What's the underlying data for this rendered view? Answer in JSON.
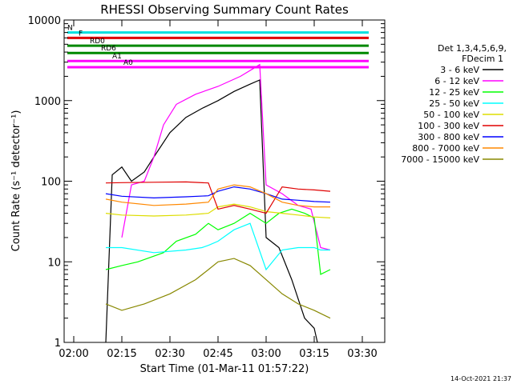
{
  "chart_data": {
    "type": "line",
    "title": "RHESSI Observing Summary Count Rates",
    "xlabel": "Start Time (01-Mar-11 01:57:22)",
    "ylabel": "Count Rate (s⁻¹ detector⁻¹)",
    "y_scale": "log",
    "ylim": [
      1,
      10000
    ],
    "x_range_minutes": [
      "01:57",
      "03:37"
    ],
    "x_ticks": [
      "02:00",
      "02:15",
      "02:30",
      "02:45",
      "03:00",
      "03:15",
      "03:30"
    ],
    "y_ticks": [
      "1",
      "10",
      "100",
      "1000",
      "10000"
    ],
    "legend_header": [
      "Det 1,3,4,5,6,9,",
      "FDecim 1"
    ],
    "legend_position": "right",
    "grid": false,
    "series": [
      {
        "name": "3 - 6 keV",
        "color": "#000000",
        "points": [
          [
            "02:10",
            0
          ],
          [
            "02:12",
            120
          ],
          [
            "02:15",
            150
          ],
          [
            "02:18",
            100
          ],
          [
            "02:22",
            130
          ],
          [
            "02:25",
            200
          ],
          [
            "02:30",
            400
          ],
          [
            "02:35",
            620
          ],
          [
            "02:40",
            800
          ],
          [
            "02:45",
            1000
          ],
          [
            "02:50",
            1300
          ],
          [
            "02:55",
            1600
          ],
          [
            "02:58",
            1800
          ],
          [
            "03:00",
            20
          ],
          [
            "03:04",
            15
          ],
          [
            "03:08",
            6
          ],
          [
            "03:12",
            2
          ],
          [
            "03:15",
            1.5
          ],
          [
            "03:16",
            0
          ]
        ]
      },
      {
        "name": "6 - 12 keV",
        "color": "#ff00ff",
        "points": [
          [
            "02:15",
            20
          ],
          [
            "02:18",
            90
          ],
          [
            "02:22",
            100
          ],
          [
            "02:25",
            200
          ],
          [
            "02:28",
            500
          ],
          [
            "02:32",
            900
          ],
          [
            "02:38",
            1200
          ],
          [
            "02:45",
            1500
          ],
          [
            "02:52",
            2000
          ],
          [
            "02:56",
            2500
          ],
          [
            "02:58",
            2800
          ],
          [
            "03:00",
            90
          ],
          [
            "03:05",
            70
          ],
          [
            "03:10",
            50
          ],
          [
            "03:14",
            45
          ],
          [
            "03:17",
            15
          ],
          [
            "03:20",
            14
          ]
        ]
      },
      {
        "name": "12 - 25 keV",
        "color": "#00ff00",
        "points": [
          [
            "02:10",
            8
          ],
          [
            "02:15",
            9
          ],
          [
            "02:20",
            10
          ],
          [
            "02:28",
            13
          ],
          [
            "02:32",
            18
          ],
          [
            "02:38",
            22
          ],
          [
            "02:42",
            30
          ],
          [
            "02:45",
            25
          ],
          [
            "02:50",
            30
          ],
          [
            "02:55",
            40
          ],
          [
            "03:00",
            30
          ],
          [
            "03:04",
            40
          ],
          [
            "03:08",
            45
          ],
          [
            "03:12",
            40
          ],
          [
            "03:15",
            35
          ],
          [
            "03:17",
            7
          ],
          [
            "03:20",
            8
          ]
        ]
      },
      {
        "name": "25 - 50 keV",
        "color": "#00ffff",
        "points": [
          [
            "02:10",
            15
          ],
          [
            "02:15",
            15
          ],
          [
            "02:25",
            13
          ],
          [
            "02:35",
            14
          ],
          [
            "02:40",
            15
          ],
          [
            "02:42",
            16
          ],
          [
            "02:45",
            18
          ],
          [
            "02:50",
            25
          ],
          [
            "02:55",
            30
          ],
          [
            "03:00",
            8
          ],
          [
            "03:05",
            14
          ],
          [
            "03:10",
            15
          ],
          [
            "03:15",
            15
          ],
          [
            "03:17",
            14
          ],
          [
            "03:20",
            14
          ]
        ]
      },
      {
        "name": "50 - 100 keV",
        "color": "#dddd00",
        "points": [
          [
            "02:10",
            40
          ],
          [
            "02:15",
            38
          ],
          [
            "02:25",
            37
          ],
          [
            "02:35",
            38
          ],
          [
            "02:42",
            40
          ],
          [
            "02:45",
            48
          ],
          [
            "02:50",
            52
          ],
          [
            "02:55",
            48
          ],
          [
            "03:00",
            42
          ],
          [
            "03:05",
            40
          ],
          [
            "03:10",
            38
          ],
          [
            "03:15",
            36
          ],
          [
            "03:20",
            35
          ]
        ]
      },
      {
        "name": "100 - 300 keV",
        "color": "#e00000",
        "points": [
          [
            "02:10",
            95
          ],
          [
            "02:15",
            96
          ],
          [
            "02:25",
            97
          ],
          [
            "02:35",
            98
          ],
          [
            "02:42",
            95
          ],
          [
            "02:45",
            45
          ],
          [
            "02:50",
            50
          ],
          [
            "02:55",
            45
          ],
          [
            "03:00",
            40
          ],
          [
            "03:05",
            85
          ],
          [
            "03:10",
            80
          ],
          [
            "03:15",
            78
          ],
          [
            "03:20",
            75
          ]
        ]
      },
      {
        "name": "300 - 800 keV",
        "color": "#0000ff",
        "points": [
          [
            "02:10",
            70
          ],
          [
            "02:15",
            65
          ],
          [
            "02:25",
            62
          ],
          [
            "02:35",
            64
          ],
          [
            "02:42",
            66
          ],
          [
            "02:45",
            75
          ],
          [
            "02:50",
            85
          ],
          [
            "02:55",
            80
          ],
          [
            "03:00",
            70
          ],
          [
            "03:05",
            60
          ],
          [
            "03:10",
            58
          ],
          [
            "03:15",
            56
          ],
          [
            "03:20",
            55
          ]
        ]
      },
      {
        "name": "800 - 7000 keV",
        "color": "#ff8800",
        "points": [
          [
            "02:10",
            60
          ],
          [
            "02:15",
            55
          ],
          [
            "02:25",
            50
          ],
          [
            "02:35",
            52
          ],
          [
            "02:42",
            55
          ],
          [
            "02:45",
            80
          ],
          [
            "02:50",
            90
          ],
          [
            "02:55",
            85
          ],
          [
            "03:00",
            70
          ],
          [
            "03:05",
            55
          ],
          [
            "03:10",
            50
          ],
          [
            "03:15",
            48
          ],
          [
            "03:20",
            48
          ]
        ]
      },
      {
        "name": "7000 - 15000 keV",
        "color": "#888800",
        "points": [
          [
            "02:10",
            3
          ],
          [
            "02:15",
            2.5
          ],
          [
            "02:22",
            3
          ],
          [
            "02:30",
            4
          ],
          [
            "02:38",
            6
          ],
          [
            "02:42",
            8
          ],
          [
            "02:45",
            10
          ],
          [
            "02:50",
            11
          ],
          [
            "02:55",
            9
          ],
          [
            "03:00",
            6
          ],
          [
            "03:05",
            4
          ],
          [
            "03:10",
            3
          ],
          [
            "03:15",
            2.5
          ],
          [
            "03:20",
            2
          ]
        ]
      }
    ],
    "flags": [
      {
        "label": "N",
        "color": "#00e0e0",
        "y": 7000
      },
      {
        "label": "F",
        "color": "#e00000",
        "y": 6000
      },
      {
        "label": "RD0",
        "color": "#008800",
        "y": 4800
      },
      {
        "label": "RD6",
        "color": "#008800",
        "y": 3900
      },
      {
        "label": "A1",
        "color": "#ff00ff",
        "y": 3100
      },
      {
        "label": "A0",
        "color": "#ff00ff",
        "y": 2600
      }
    ]
  },
  "footer": {
    "timestamp": "14-Oct-2021 21:37"
  }
}
